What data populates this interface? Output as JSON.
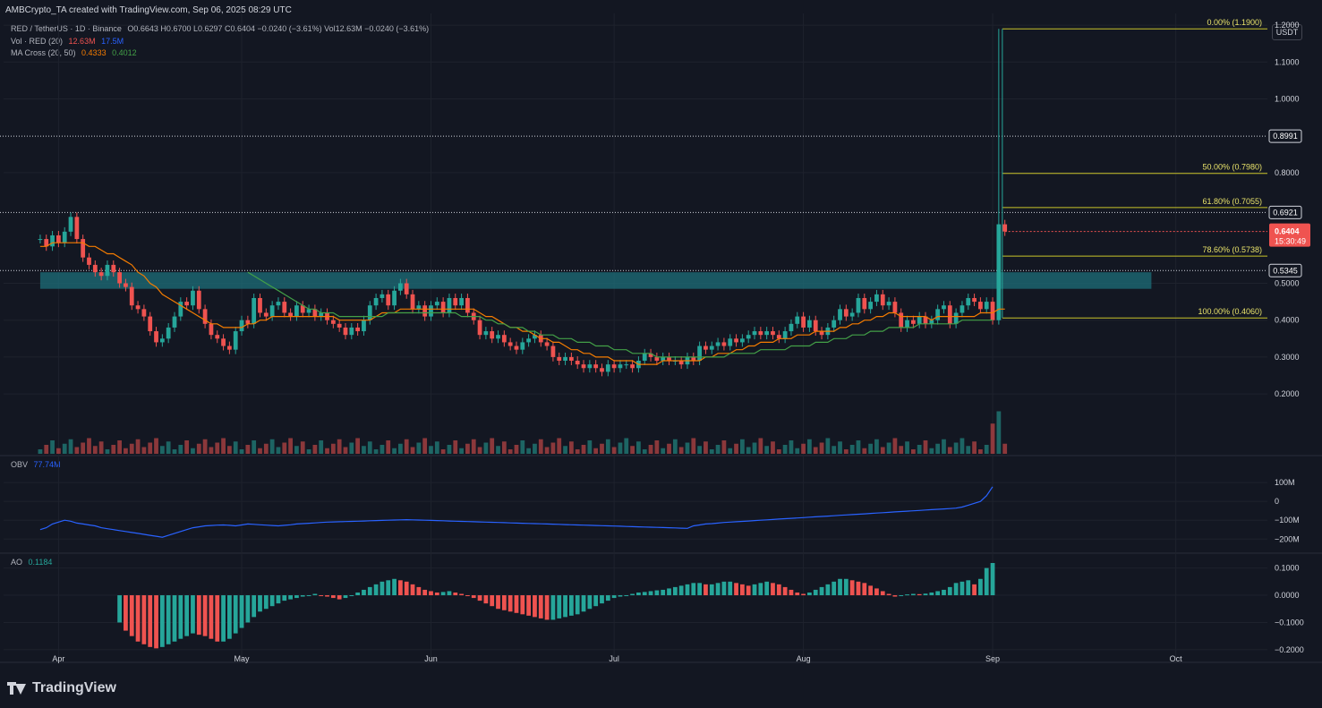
{
  "header": {
    "text": "AMBCrypto_TA created with TradingView.com, Sep 06, 2025 08:29 UTC"
  },
  "legend": {
    "symbol": "RED / TetherUS · 1D · Binance",
    "ohlc": "O0.6643  H0.6700  L0.6297  C0.6404  −0.0240 (−3.61%)  Vol12.63M  −0.0240 (−3.61%)",
    "vol_label": "Vol · RED (20)",
    "vol_v1": "12.63M",
    "vol_v2": "17.5M",
    "ma_label": "MA Cross (20, 50)",
    "ma_v1": "0.4333",
    "ma_v2": "0.4012",
    "obv_label": "OBV",
    "obv_value": "77.74M",
    "ao_label": "AO",
    "ao_value": "0.1184"
  },
  "currency_button": "USDT",
  "brand": "TradingView",
  "colors": {
    "up": "#26a69a",
    "down": "#ef5350",
    "ma20": "#f57c00",
    "ma50": "#43a047",
    "obv": "#2962ff",
    "fib": "#c9c42a",
    "zone": "#1e6f7a"
  },
  "chart_data": [
    {
      "type": "candlestick",
      "ylim": [
        0.15,
        1.25
      ],
      "price_ticks": [
        "1.2000",
        "1.1000",
        "1.0000",
        "0.8000",
        "0.5000",
        "0.4000",
        "0.3000",
        "0.2000"
      ],
      "x_labels": [
        {
          "label": "Apr",
          "day": 3
        },
        {
          "label": "May",
          "day": 33
        },
        {
          "label": "Jun",
          "day": 64
        },
        {
          "label": "Jul",
          "day": 94
        },
        {
          "label": "Aug",
          "day": 125
        },
        {
          "label": "Sep",
          "day": 156
        },
        {
          "label": "Oct",
          "day": 186
        }
      ],
      "x_range_days": [
        -6,
        201
      ],
      "fib_levels": [
        {
          "label": "0.00% (1.1900)",
          "price": 1.19
        },
        {
          "label": "50.00% (0.7980)",
          "price": 0.798
        },
        {
          "label": "61.80% (0.7055)",
          "price": 0.7055
        },
        {
          "label": "78.60% (0.5738)",
          "price": 0.5738
        },
        {
          "label": "100.00% (0.4060)",
          "price": 0.406
        }
      ],
      "horizontal_lines": [
        {
          "label": "0.8991",
          "price": 0.8991
        },
        {
          "label": "0.6921",
          "price": 0.6921
        },
        {
          "label": "0.5345",
          "price": 0.5345
        }
      ],
      "current_price": {
        "price": "0.6404",
        "countdown": "15:30:49",
        "value": 0.6404
      },
      "zone": {
        "low": 0.485,
        "high": 0.53,
        "from_day": 0,
        "to_day": 182
      },
      "candle_closes": [
        0.62,
        0.6,
        0.63,
        0.61,
        0.64,
        0.68,
        0.62,
        0.57,
        0.55,
        0.53,
        0.52,
        0.55,
        0.53,
        0.5,
        0.49,
        0.44,
        0.43,
        0.41,
        0.37,
        0.34,
        0.35,
        0.38,
        0.41,
        0.45,
        0.44,
        0.48,
        0.43,
        0.39,
        0.36,
        0.35,
        0.33,
        0.32,
        0.37,
        0.4,
        0.39,
        0.46,
        0.42,
        0.41,
        0.44,
        0.45,
        0.42,
        0.41,
        0.44,
        0.42,
        0.43,
        0.41,
        0.42,
        0.4,
        0.39,
        0.38,
        0.36,
        0.38,
        0.37,
        0.4,
        0.44,
        0.46,
        0.47,
        0.44,
        0.48,
        0.5,
        0.47,
        0.43,
        0.44,
        0.41,
        0.44,
        0.45,
        0.42,
        0.46,
        0.44,
        0.46,
        0.42,
        0.4,
        0.36,
        0.37,
        0.35,
        0.36,
        0.34,
        0.33,
        0.32,
        0.34,
        0.35,
        0.36,
        0.34,
        0.33,
        0.3,
        0.29,
        0.3,
        0.29,
        0.28,
        0.27,
        0.28,
        0.27,
        0.26,
        0.28,
        0.27,
        0.28,
        0.28,
        0.27,
        0.29,
        0.31,
        0.3,
        0.29,
        0.3,
        0.29,
        0.29,
        0.28,
        0.3,
        0.29,
        0.33,
        0.32,
        0.33,
        0.34,
        0.33,
        0.35,
        0.34,
        0.35,
        0.36,
        0.37,
        0.36,
        0.37,
        0.36,
        0.35,
        0.37,
        0.39,
        0.41,
        0.38,
        0.4,
        0.37,
        0.36,
        0.38,
        0.4,
        0.43,
        0.41,
        0.42,
        0.46,
        0.43,
        0.45,
        0.47,
        0.44,
        0.45,
        0.42,
        0.38,
        0.4,
        0.39,
        0.41,
        0.39,
        0.4,
        0.43,
        0.44,
        0.39,
        0.42,
        0.44,
        0.46,
        0.45,
        0.43,
        0.45,
        0.4,
        0.66,
        0.6404
      ],
      "ma20": [
        0.6,
        0.6,
        0.61,
        0.61,
        0.61,
        0.61,
        0.61,
        0.61,
        0.6,
        0.6,
        0.59,
        0.58,
        0.58,
        0.57,
        0.56,
        0.55,
        0.53,
        0.52,
        0.5,
        0.49,
        0.47,
        0.46,
        0.45,
        0.44,
        0.43,
        0.42,
        0.41,
        0.4,
        0.39,
        0.39,
        0.38,
        0.38,
        0.38,
        0.38,
        0.39,
        0.39,
        0.4,
        0.4,
        0.41,
        0.41,
        0.41,
        0.41,
        0.41,
        0.41,
        0.41,
        0.41,
        0.41,
        0.41,
        0.41,
        0.4,
        0.4,
        0.4,
        0.4,
        0.4,
        0.4,
        0.41,
        0.42,
        0.42,
        0.42,
        0.43,
        0.43,
        0.43,
        0.43,
        0.43,
        0.43,
        0.43,
        0.43,
        0.43,
        0.43,
        0.43,
        0.43,
        0.43,
        0.42,
        0.41,
        0.41,
        0.4,
        0.39,
        0.38,
        0.38,
        0.37,
        0.37,
        0.36,
        0.35,
        0.35,
        0.34,
        0.34,
        0.33,
        0.32,
        0.32,
        0.31,
        0.31,
        0.3,
        0.3,
        0.3,
        0.29,
        0.29,
        0.29,
        0.29,
        0.28,
        0.28,
        0.28,
        0.28,
        0.29,
        0.29,
        0.29,
        0.29,
        0.29,
        0.29,
        0.29,
        0.3,
        0.3,
        0.31,
        0.31,
        0.31,
        0.32,
        0.32,
        0.33,
        0.33,
        0.34,
        0.34,
        0.34,
        0.35,
        0.35,
        0.35,
        0.36,
        0.36,
        0.36,
        0.37,
        0.37,
        0.37,
        0.37,
        0.38,
        0.38,
        0.39,
        0.39,
        0.4,
        0.4,
        0.41,
        0.41,
        0.42,
        0.42,
        0.41,
        0.41,
        0.41,
        0.41,
        0.41,
        0.4,
        0.41,
        0.41,
        0.41,
        0.41,
        0.41,
        0.41,
        0.41,
        0.42,
        0.42,
        0.42,
        0.43,
        0.43
      ],
      "ma50": [
        null,
        null,
        null,
        null,
        null,
        null,
        null,
        null,
        null,
        null,
        null,
        null,
        null,
        null,
        null,
        null,
        null,
        null,
        null,
        null,
        null,
        null,
        null,
        null,
        null,
        null,
        null,
        null,
        null,
        null,
        null,
        null,
        null,
        null,
        0.53,
        0.52,
        0.51,
        0.5,
        0.49,
        0.48,
        0.47,
        0.46,
        0.45,
        0.44,
        0.43,
        0.43,
        0.42,
        0.42,
        0.42,
        0.41,
        0.41,
        0.41,
        0.41,
        0.41,
        0.41,
        0.41,
        0.41,
        0.42,
        0.42,
        0.42,
        0.42,
        0.42,
        0.42,
        0.42,
        0.42,
        0.42,
        0.42,
        0.42,
        0.42,
        0.41,
        0.41,
        0.41,
        0.41,
        0.4,
        0.4,
        0.39,
        0.39,
        0.38,
        0.38,
        0.38,
        0.37,
        0.37,
        0.36,
        0.36,
        0.36,
        0.35,
        0.35,
        0.35,
        0.34,
        0.34,
        0.34,
        0.33,
        0.33,
        0.33,
        0.32,
        0.32,
        0.32,
        0.31,
        0.31,
        0.31,
        0.31,
        0.3,
        0.3,
        0.3,
        0.3,
        0.3,
        0.3,
        0.3,
        0.3,
        0.3,
        0.3,
        0.3,
        0.3,
        0.31,
        0.31,
        0.31,
        0.31,
        0.31,
        0.32,
        0.32,
        0.32,
        0.32,
        0.32,
        0.33,
        0.33,
        0.33,
        0.33,
        0.34,
        0.34,
        0.34,
        0.35,
        0.35,
        0.35,
        0.36,
        0.36,
        0.36,
        0.37,
        0.37,
        0.37,
        0.38,
        0.38,
        0.38,
        0.38,
        0.38,
        0.39,
        0.39,
        0.39,
        0.39,
        0.39,
        0.39,
        0.39,
        0.4,
        0.4,
        0.4,
        0.4,
        0.4,
        0.4
      ],
      "volume_ylim": [
        0,
        40
      ]
    },
    {
      "type": "line",
      "name": "OBV",
      "ticks": [
        "100M",
        "0",
        "−100M",
        "−200M"
      ],
      "ylim": [
        -270,
        110
      ],
      "values": [
        -150,
        -140,
        -120,
        -110,
        -100,
        -105,
        -115,
        -120,
        -125,
        -130,
        -140,
        -145,
        -150,
        -155,
        -160,
        -165,
        -170,
        -175,
        -180,
        -185,
        -190,
        -180,
        -170,
        -160,
        -150,
        -140,
        -135,
        -130,
        -128,
        -126,
        -125,
        -127,
        -130,
        -125,
        -120,
        -122,
        -124,
        -126,
        -128,
        -130,
        -127,
        -124,
        -120,
        -118,
        -116,
        -114,
        -112,
        -110,
        -109,
        -108,
        -107,
        -106,
        -105,
        -104,
        -103,
        -102,
        -101,
        -100,
        -99,
        -98,
        -97,
        -98,
        -99,
        -100,
        -101,
        -102,
        -103,
        -104,
        -105,
        -106,
        -107,
        -108,
        -109,
        -110,
        -111,
        -112,
        -113,
        -114,
        -115,
        -116,
        -117,
        -118,
        -119,
        -120,
        -121,
        -122,
        -123,
        -124,
        -125,
        -126,
        -127,
        -128,
        -129,
        -130,
        -131,
        -132,
        -133,
        -134,
        -135,
        -136,
        -137,
        -138,
        -139,
        -140,
        -141,
        -142,
        -143,
        -130,
        -125,
        -120,
        -118,
        -115,
        -112,
        -110,
        -108,
        -106,
        -104,
        -102,
        -100,
        -98,
        -96,
        -94,
        -92,
        -90,
        -88,
        -86,
        -84,
        -82,
        -80,
        -78,
        -76,
        -74,
        -72,
        -70,
        -68,
        -66,
        -64,
        -62,
        -60,
        -58,
        -56,
        -54,
        -52,
        -50,
        -48,
        -46,
        -44,
        -42,
        -40,
        -38,
        -36,
        -30,
        -20,
        -10,
        0,
        30,
        77.74
      ]
    },
    {
      "type": "histogram",
      "name": "AO",
      "ticks": [
        "0.1000",
        "0.0000",
        "−0.1000",
        "−0.2000"
      ],
      "ylim": [
        -0.23,
        0.125
      ],
      "values": [
        null,
        null,
        null,
        null,
        null,
        null,
        null,
        null,
        null,
        null,
        null,
        null,
        null,
        -0.1,
        -0.13,
        -0.15,
        -0.17,
        -0.18,
        -0.19,
        -0.195,
        -0.19,
        -0.18,
        -0.17,
        -0.16,
        -0.15,
        -0.14,
        -0.145,
        -0.15,
        -0.16,
        -0.17,
        -0.17,
        -0.16,
        -0.14,
        -0.12,
        -0.1,
        -0.08,
        -0.06,
        -0.05,
        -0.04,
        -0.03,
        -0.02,
        -0.015,
        -0.01,
        -0.005,
        0.0,
        0.005,
        0.0,
        -0.005,
        -0.01,
        -0.015,
        -0.01,
        0.0,
        0.01,
        0.02,
        0.03,
        0.04,
        0.05,
        0.055,
        0.06,
        0.055,
        0.05,
        0.04,
        0.03,
        0.02,
        0.015,
        0.01,
        0.012,
        0.015,
        0.01,
        0.005,
        0.0,
        -0.01,
        -0.02,
        -0.03,
        -0.04,
        -0.05,
        -0.055,
        -0.06,
        -0.065,
        -0.07,
        -0.075,
        -0.08,
        -0.085,
        -0.09,
        -0.09,
        -0.085,
        -0.08,
        -0.075,
        -0.07,
        -0.06,
        -0.05,
        -0.04,
        -0.03,
        -0.02,
        -0.01,
        -0.005,
        0.0,
        0.005,
        0.01,
        0.012,
        0.015,
        0.018,
        0.02,
        0.025,
        0.03,
        0.035,
        0.04,
        0.045,
        0.045,
        0.04,
        0.04,
        0.045,
        0.05,
        0.05,
        0.045,
        0.04,
        0.035,
        0.04,
        0.045,
        0.05,
        0.045,
        0.04,
        0.03,
        0.02,
        0.01,
        0.005,
        0.01,
        0.02,
        0.03,
        0.04,
        0.05,
        0.06,
        0.06,
        0.055,
        0.05,
        0.045,
        0.035,
        0.025,
        0.015,
        0.005,
        -0.005,
        -0.002,
        0.003,
        0.005,
        0.004,
        0.006,
        0.01,
        0.015,
        0.02,
        0.03,
        0.045,
        0.05,
        0.055,
        0.04,
        0.06,
        0.1,
        0.1184
      ]
    }
  ]
}
